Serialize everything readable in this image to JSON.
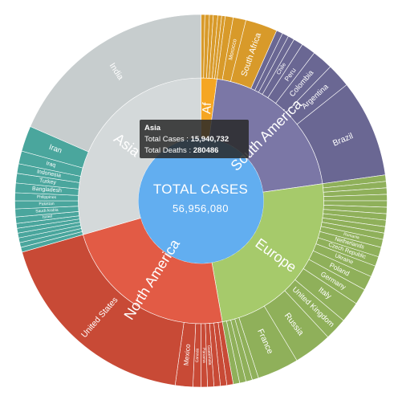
{
  "center": {
    "title": "TOTAL CASES",
    "value": "56,956,080"
  },
  "tooltip": {
    "title": "Asia",
    "cases_label": "Total Cases :",
    "cases_value": "15,940,732",
    "deaths_label": "Total Deaths :",
    "deaths_value": "280486"
  },
  "colors": {
    "Asia": "#d4d9da",
    "Asia_outer": "#c7cdce",
    "Asia_teal": "#4aa69d",
    "Africa": "#f5a623",
    "Africa_outer": "#d89a2a",
    "South America": "#7b77a6",
    "South America_outer": "#6a6793",
    "Europe": "#a6ca6b",
    "Europe_outer": "#8fb05a",
    "North America": "#e25b45",
    "North America_outer": "#c84a36",
    "center": "#62aef0"
  },
  "chart_data": {
    "type": "sunburst",
    "inner": [
      {
        "name": "Af",
        "start": 0,
        "end": 7.5,
        "colorKey": "Africa"
      },
      {
        "name": "South America",
        "start": 7.5,
        "end": 82,
        "colorKey": "South America"
      },
      {
        "name": "Europe",
        "start": 82,
        "end": 170,
        "colorKey": "Europe"
      },
      {
        "name": "North America",
        "start": 170,
        "end": 254,
        "colorKey": "North America"
      },
      {
        "name": "Asia",
        "start": 254,
        "end": 360,
        "colorKey": "Asia"
      }
    ],
    "outer": [
      {
        "name": "",
        "start": 0,
        "end": 1.2,
        "colorKey": "Africa_outer"
      },
      {
        "name": "",
        "start": 1.2,
        "end": 2.6,
        "colorKey": "Africa_outer"
      },
      {
        "name": "",
        "start": 2.6,
        "end": 3.8,
        "colorKey": "Africa_outer"
      },
      {
        "name": "",
        "start": 3.8,
        "end": 5.2,
        "colorKey": "Africa_outer"
      },
      {
        "name": "",
        "start": 5.2,
        "end": 6.4,
        "colorKey": "Africa_outer"
      },
      {
        "name": "",
        "start": 6.4,
        "end": 7.5,
        "colorKey": "Africa_outer"
      },
      {
        "name": "",
        "start": 7.5,
        "end": 10,
        "colorKey": "Africa_outer"
      },
      {
        "name": "Morocco",
        "start": 10,
        "end": 14,
        "colorKey": "Africa_outer"
      },
      {
        "name": "South Africa",
        "start": 14,
        "end": 24,
        "colorKey": "Africa_outer"
      },
      {
        "name": "",
        "start": 24,
        "end": 26,
        "colorKey": "South America_outer"
      },
      {
        "name": "",
        "start": 26,
        "end": 28,
        "colorKey": "South America_outer"
      },
      {
        "name": "",
        "start": 28,
        "end": 30,
        "colorKey": "South America_outer"
      },
      {
        "name": "Chile",
        "start": 30,
        "end": 33,
        "colorKey": "South America_outer"
      },
      {
        "name": "Peru",
        "start": 33,
        "end": 37.5,
        "colorKey": "South America_outer"
      },
      {
        "name": "Colombia",
        "start": 37.5,
        "end": 44,
        "colorKey": "South America_outer"
      },
      {
        "name": "Argentina",
        "start": 44,
        "end": 51.5,
        "colorKey": "South America_outer"
      },
      {
        "name": "Brazil",
        "start": 51.5,
        "end": 82,
        "colorKey": "South America_outer"
      },
      {
        "name": "",
        "start": 82,
        "end": 84,
        "colorKey": "Europe_outer"
      },
      {
        "name": "",
        "start": 84,
        "end": 86,
        "colorKey": "Europe_outer"
      },
      {
        "name": "",
        "start": 86,
        "end": 88,
        "colorKey": "Europe_outer"
      },
      {
        "name": "",
        "start": 88,
        "end": 90,
        "colorKey": "Europe_outer"
      },
      {
        "name": "",
        "start": 90,
        "end": 92,
        "colorKey": "Europe_outer"
      },
      {
        "name": "",
        "start": 92,
        "end": 94,
        "colorKey": "Europe_outer"
      },
      {
        "name": "",
        "start": 94,
        "end": 96,
        "colorKey": "Europe_outer"
      },
      {
        "name": "",
        "start": 96,
        "end": 98,
        "colorKey": "Europe_outer"
      },
      {
        "name": "",
        "start": 98,
        "end": 100,
        "colorKey": "Europe_outer"
      },
      {
        "name": "",
        "start": 100,
        "end": 102,
        "colorKey": "Europe_outer"
      },
      {
        "name": "Romania",
        "start": 102,
        "end": 104.5,
        "colorKey": "Europe_outer"
      },
      {
        "name": "Netherlands",
        "start": 104.5,
        "end": 107.5,
        "colorKey": "Europe_outer"
      },
      {
        "name": "Czech Republic",
        "start": 107.5,
        "end": 110.5,
        "colorKey": "Europe_outer"
      },
      {
        "name": "Ukraine",
        "start": 110.5,
        "end": 114,
        "colorKey": "Europe_outer"
      },
      {
        "name": "Poland",
        "start": 114,
        "end": 118.5,
        "colorKey": "Europe_outer"
      },
      {
        "name": "Germany",
        "start": 118.5,
        "end": 123.5,
        "colorKey": "Europe_outer"
      },
      {
        "name": "Italy",
        "start": 123.5,
        "end": 130,
        "colorKey": "Europe_outer"
      },
      {
        "name": "United Kingdom",
        "start": 130,
        "end": 137,
        "colorKey": "Europe_outer"
      },
      {
        "name": "Russia",
        "start": 137,
        "end": 149,
        "colorKey": "Europe_outer"
      },
      {
        "name": "France",
        "start": 149,
        "end": 162,
        "colorKey": "Europe_outer"
      },
      {
        "name": "",
        "start": 162,
        "end": 164,
        "colorKey": "Europe_outer"
      },
      {
        "name": "",
        "start": 164,
        "end": 166,
        "colorKey": "Europe_outer"
      },
      {
        "name": "",
        "start": 166,
        "end": 168,
        "colorKey": "Europe_outer"
      },
      {
        "name": "",
        "start": 168,
        "end": 170,
        "colorKey": "Europe_outer"
      },
      {
        "name": "",
        "start": 170,
        "end": 172,
        "colorKey": "North America_outer"
      },
      {
        "name": "",
        "start": 172,
        "end": 174,
        "colorKey": "North America_outer"
      },
      {
        "name": "",
        "start": 174,
        "end": 176,
        "colorKey": "North America_outer"
      },
      {
        "name": "Guatemala",
        "start": 176,
        "end": 178,
        "colorKey": "North America_outer"
      },
      {
        "name": "Panama",
        "start": 178,
        "end": 180,
        "colorKey": "North America_outer"
      },
      {
        "name": "Canada",
        "start": 180,
        "end": 182.5,
        "colorKey": "North America_outer"
      },
      {
        "name": "Mexico",
        "start": 182.5,
        "end": 188,
        "colorKey": "North America_outer"
      },
      {
        "name": "United States",
        "start": 188,
        "end": 254,
        "colorKey": "North America_outer"
      },
      {
        "name": "",
        "start": 254,
        "end": 255.5,
        "colorKey": "Asia_teal"
      },
      {
        "name": "",
        "start": 255.5,
        "end": 257,
        "colorKey": "Asia_teal"
      },
      {
        "name": "",
        "start": 257,
        "end": 258.5,
        "colorKey": "Asia_teal"
      },
      {
        "name": "",
        "start": 258.5,
        "end": 260,
        "colorKey": "Asia_teal"
      },
      {
        "name": "",
        "start": 260,
        "end": 261.5,
        "colorKey": "Asia_teal"
      },
      {
        "name": "",
        "start": 261.5,
        "end": 263,
        "colorKey": "Asia_teal"
      },
      {
        "name": "Israel",
        "start": 263,
        "end": 265,
        "colorKey": "Asia_teal"
      },
      {
        "name": "Saudi Arabia",
        "start": 265,
        "end": 267.5,
        "colorKey": "Asia_teal"
      },
      {
        "name": "Pakistan",
        "start": 267.5,
        "end": 270,
        "colorKey": "Asia_teal"
      },
      {
        "name": "Philippines",
        "start": 270,
        "end": 272.5,
        "colorKey": "Asia_teal"
      },
      {
        "name": "Bangladesh",
        "start": 272.5,
        "end": 275.5,
        "colorKey": "Asia_teal"
      },
      {
        "name": "Turkey",
        "start": 275.5,
        "end": 278.5,
        "colorKey": "Asia_teal"
      },
      {
        "name": "Indonesia",
        "start": 278.5,
        "end": 281.5,
        "colorKey": "Asia_teal"
      },
      {
        "name": "Iraq",
        "start": 281.5,
        "end": 285.5,
        "colorKey": "Asia_teal"
      },
      {
        "name": "Iran",
        "start": 285.5,
        "end": 293.5,
        "colorKey": "Asia_teal"
      },
      {
        "name": "India",
        "start": 293.5,
        "end": 360,
        "colorKey": "Asia_outer"
      }
    ]
  }
}
